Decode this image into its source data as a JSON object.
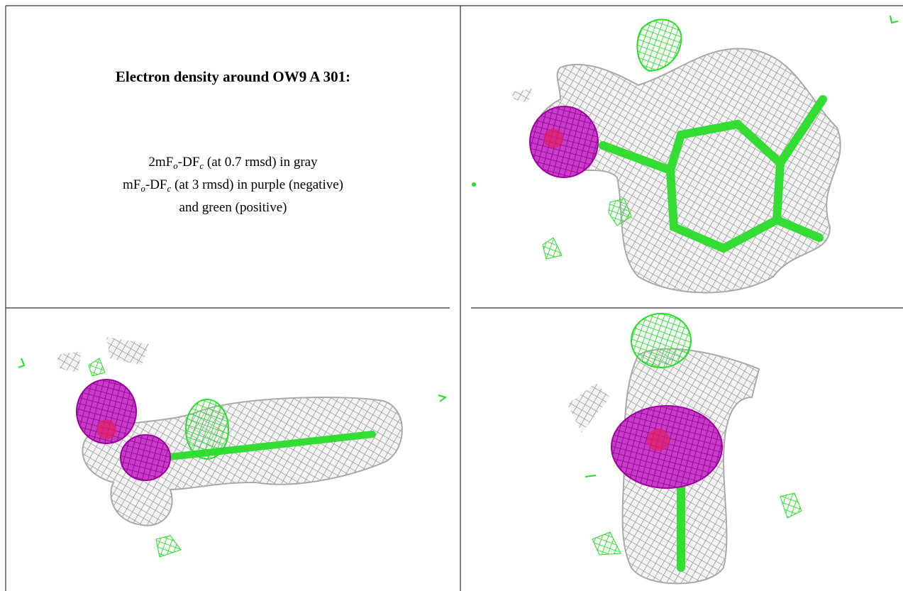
{
  "caption": {
    "title": "Electron density around OW9 A 301:",
    "lines": [
      [
        {
          "text": "2mF"
        },
        {
          "sub": "o"
        },
        {
          "text": "-DF"
        },
        {
          "sub": "c"
        },
        {
          "text": " (at 0.7 rmsd) in gray"
        }
      ],
      [
        {
          "text": "mF"
        },
        {
          "sub": "o"
        },
        {
          "text": "-DF"
        },
        {
          "sub": "c"
        },
        {
          "text": " (at 3 rmsd) in purple (negative)"
        }
      ],
      [
        {
          "text": "and green (positive)"
        }
      ]
    ]
  }
}
